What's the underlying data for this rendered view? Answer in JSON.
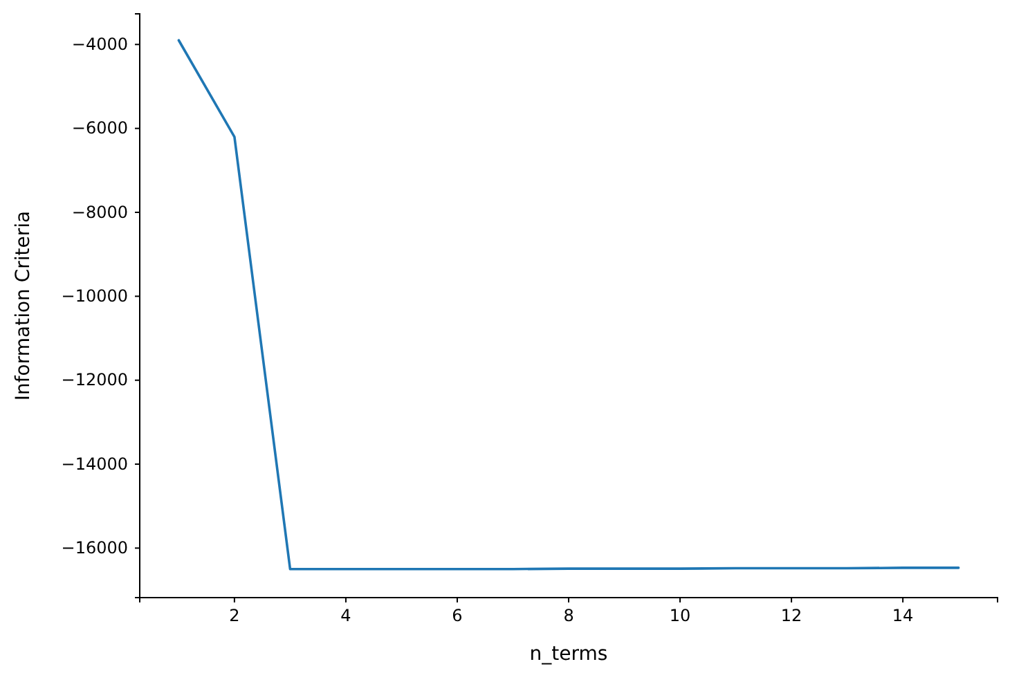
{
  "chart_data": {
    "type": "line",
    "xlabel": "n_terms",
    "ylabel": "Information Criteria",
    "x": [
      1,
      2,
      3,
      4,
      5,
      6,
      7,
      8,
      9,
      10,
      11,
      12,
      13,
      14,
      15
    ],
    "series": [
      {
        "color": "#1f77b4",
        "values": [
          -3900,
          -6200,
          -16500,
          -16500,
          -16500,
          -16500,
          -16500,
          -16490,
          -16490,
          -16490,
          -16480,
          -16480,
          -16480,
          -16470,
          -16470
        ]
      }
    ],
    "xlim": [
      0.3,
      15.7
    ],
    "ylim": [
      -17180,
      -3270
    ],
    "xticks": [
      2,
      4,
      6,
      8,
      10,
      12,
      14
    ],
    "yticks": [
      {
        "value": -16000,
        "label": "−16000"
      },
      {
        "value": -14000,
        "label": "−14000"
      },
      {
        "value": -12000,
        "label": "−12000"
      },
      {
        "value": -10000,
        "label": "−10000"
      },
      {
        "value": -8000,
        "label": "−8000"
      },
      {
        "value": -6000,
        "label": "−6000"
      },
      {
        "value": -4000,
        "label": "−4000"
      }
    ],
    "marker": "none",
    "line_style": "solid"
  }
}
